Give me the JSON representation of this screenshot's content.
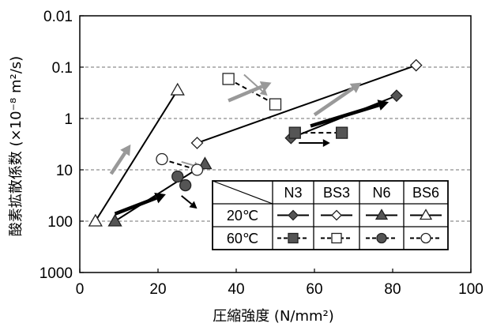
{
  "chart_data": {
    "type": "scatter",
    "title": "",
    "xlabel": "圧縮強度 (N/mm²)",
    "ylabel": "酸素拡散係数 (×10⁻⁸ m²/s)",
    "xlim": [
      0,
      100
    ],
    "ylim": [
      0.01,
      1000
    ],
    "y_scale": "log",
    "y_reversed": true,
    "x_ticks": [
      "0",
      "20",
      "40",
      "60",
      "80",
      "100"
    ],
    "y_ticks": [
      "0.01",
      "0.1",
      "1",
      "10",
      "100",
      "1000"
    ],
    "grid": "horizontal dashed",
    "legend": {
      "placement": "bottom-right",
      "columns": [
        "N3",
        "BS3",
        "N6",
        "BS6"
      ],
      "rows": [
        "20℃",
        "60℃"
      ]
    },
    "series": [
      {
        "name": "N3",
        "temperature": "20℃",
        "marker": "diamond",
        "fill": "#555555",
        "line": "solid",
        "points": [
          [
            54,
            2.4
          ],
          [
            81,
            0.36
          ]
        ]
      },
      {
        "name": "BS3",
        "temperature": "20℃",
        "marker": "diamond",
        "fill": "#ffffff",
        "line": "solid",
        "points": [
          [
            30,
            3.0
          ],
          [
            86,
            0.092
          ]
        ]
      },
      {
        "name": "N6",
        "temperature": "20℃",
        "marker": "triangle",
        "fill": "#555555",
        "line": "solid",
        "points": [
          [
            9,
            100
          ],
          [
            32,
            7.7
          ]
        ]
      },
      {
        "name": "BS6",
        "temperature": "20℃",
        "marker": "triangle",
        "fill": "#ffffff",
        "line": "solid",
        "points": [
          [
            4,
            100
          ],
          [
            25,
            0.28
          ]
        ]
      },
      {
        "name": "N3",
        "temperature": "60℃",
        "marker": "square",
        "fill": "#555555",
        "line": "dashed",
        "points": [
          [
            55,
            1.9
          ],
          [
            67,
            1.9
          ]
        ]
      },
      {
        "name": "BS3",
        "temperature": "60℃",
        "marker": "square",
        "fill": "#ffffff",
        "line": "dashed",
        "points": [
          [
            38,
            0.17
          ],
          [
            50,
            0.53
          ]
        ]
      },
      {
        "name": "N6",
        "temperature": "60℃",
        "marker": "circle",
        "fill": "#555555",
        "line": "dashed",
        "points": [
          [
            25,
            13.5
          ],
          [
            27,
            20
          ]
        ]
      },
      {
        "name": "BS6",
        "temperature": "60℃",
        "marker": "circle",
        "fill": "#ffffff",
        "line": "dashed",
        "points": [
          [
            21,
            6.2
          ],
          [
            30,
            10
          ]
        ]
      }
    ],
    "arrows": [
      {
        "from": [
          9,
          72
        ],
        "to": [
          22,
          30
        ],
        "color": "#000000",
        "weight": "bold"
      },
      {
        "from": [
          26,
          32
        ],
        "to": [
          30,
          57
        ],
        "color": "#000000",
        "weight": "thin"
      },
      {
        "from": [
          8,
          12
        ],
        "to": [
          13,
          3.2
        ],
        "color": "#999999",
        "weight": "bold"
      },
      {
        "from": [
          26,
          7
        ],
        "to": [
          31,
          9
        ],
        "color": "#999999",
        "weight": "thin"
      },
      {
        "from": [
          38,
          0.45
        ],
        "to": [
          49,
          0.2
        ],
        "color": "#999999",
        "weight": "bold"
      },
      {
        "from": [
          42,
          0.14
        ],
        "to": [
          48,
          0.36
        ],
        "color": "#999999",
        "weight": "thin"
      },
      {
        "from": [
          60,
          0.85
        ],
        "to": [
          72,
          0.2
        ],
        "color": "#999999",
        "weight": "bold"
      },
      {
        "from": [
          59,
          1.4
        ],
        "to": [
          79,
          0.48
        ],
        "color": "#000000",
        "weight": "bold"
      },
      {
        "from": [
          56,
          3.0
        ],
        "to": [
          64,
          3.0
        ],
        "color": "#000000",
        "weight": "thin"
      }
    ]
  }
}
